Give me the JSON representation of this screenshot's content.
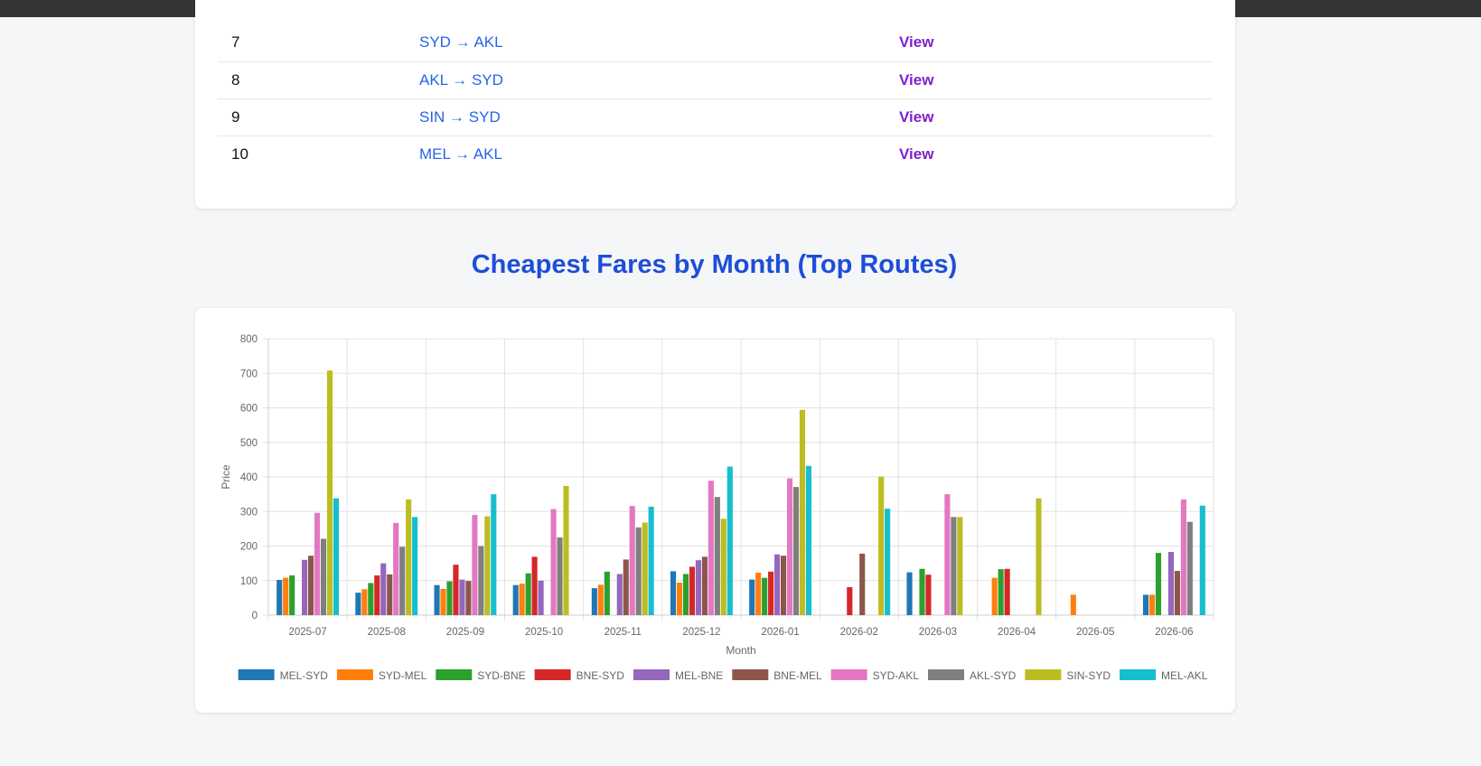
{
  "table": {
    "rows": [
      {
        "num": "7",
        "route": "SYD → AKL",
        "action": "View"
      },
      {
        "num": "8",
        "route": "AKL → SYD",
        "action": "View"
      },
      {
        "num": "9",
        "route": "SIN → SYD",
        "action": "View"
      },
      {
        "num": "10",
        "route": "MEL → AKL",
        "action": "View"
      }
    ]
  },
  "section_title": "Cheapest Fares by Month (Top Routes)",
  "chart_data": {
    "type": "bar",
    "xlabel": "Month",
    "ylabel": "Price",
    "ylim": [
      0,
      800
    ],
    "yticks": [
      0,
      100,
      200,
      300,
      400,
      500,
      600,
      700,
      800
    ],
    "grid": true,
    "legend_position": "bottom",
    "categories": [
      "2025-07",
      "2025-08",
      "2025-09",
      "2025-10",
      "2025-11",
      "2025-12",
      "2026-01",
      "2026-02",
      "2026-03",
      "2026-04",
      "2026-05",
      "2026-06"
    ],
    "series": [
      {
        "name": "MEL-SYD",
        "color": "#1f77b4",
        "values": [
          102,
          65,
          87,
          87,
          78,
          127,
          103,
          null,
          124,
          null,
          null,
          59
        ]
      },
      {
        "name": "SYD-MEL",
        "color": "#ff7f0e",
        "values": [
          108,
          75,
          76,
          91,
          88,
          94,
          123,
          null,
          null,
          108,
          59,
          59
        ]
      },
      {
        "name": "SYD-BNE",
        "color": "#2ca02c",
        "values": [
          115,
          93,
          98,
          121,
          126,
          119,
          108,
          null,
          134,
          133,
          null,
          180
        ]
      },
      {
        "name": "BNE-SYD",
        "color": "#d62728",
        "values": [
          null,
          115,
          146,
          169,
          null,
          140,
          126,
          81,
          117,
          134,
          null,
          null
        ]
      },
      {
        "name": "MEL-BNE",
        "color": "#9467bd",
        "values": [
          160,
          150,
          103,
          100,
          119,
          159,
          176,
          null,
          null,
          null,
          null,
          183
        ]
      },
      {
        "name": "BNE-MEL",
        "color": "#8c564b",
        "values": [
          172,
          118,
          99,
          null,
          161,
          169,
          172,
          178,
          null,
          null,
          null,
          128
        ]
      },
      {
        "name": "SYD-AKL",
        "color": "#e377c2",
        "values": [
          296,
          267,
          290,
          307,
          316,
          389,
          396,
          null,
          350,
          null,
          null,
          335
        ]
      },
      {
        "name": "AKL-SYD",
        "color": "#7f7f7f",
        "values": [
          221,
          198,
          200,
          225,
          254,
          342,
          371,
          null,
          284,
          null,
          null,
          270
        ]
      },
      {
        "name": "SIN-SYD",
        "color": "#bcbd22",
        "values": [
          708,
          335,
          286,
          374,
          268,
          279,
          594,
          401,
          284,
          338,
          null,
          null
        ]
      },
      {
        "name": "MEL-AKL",
        "color": "#17becf",
        "values": [
          338,
          284,
          350,
          null,
          314,
          430,
          432,
          308,
          null,
          null,
          null,
          317
        ]
      }
    ]
  }
}
